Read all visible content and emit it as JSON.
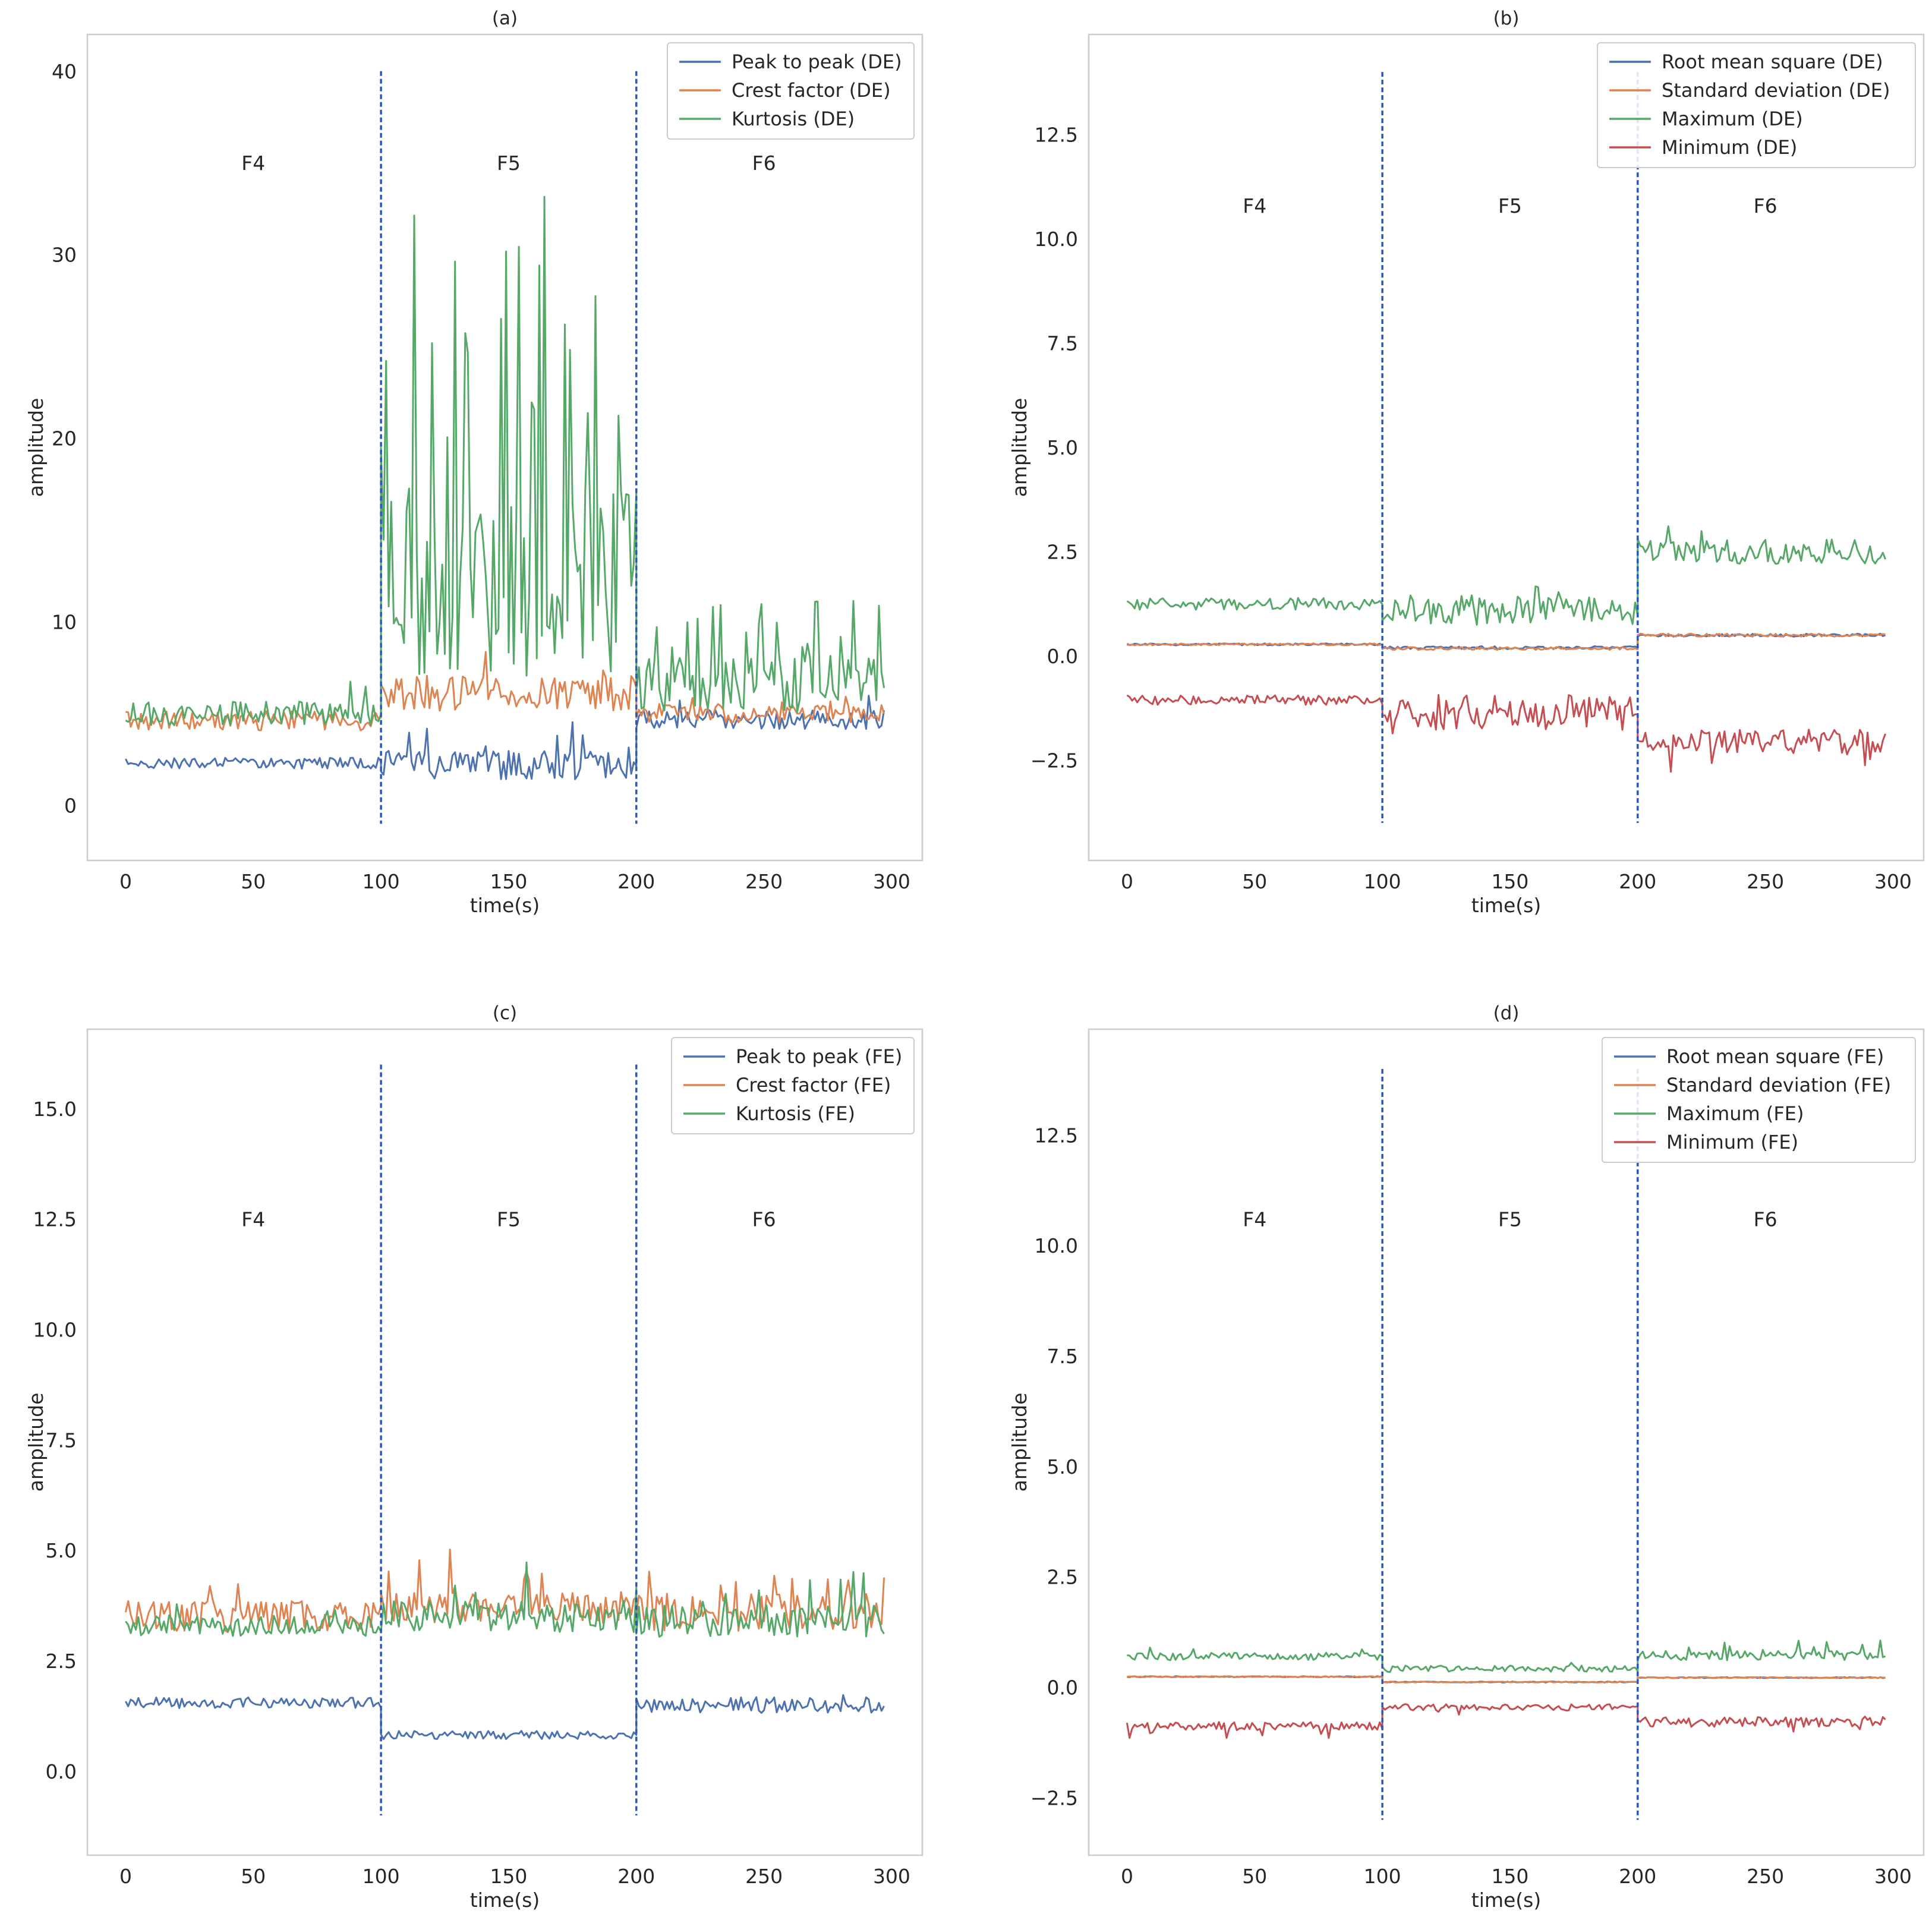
{
  "colors": {
    "blue": "#4c72b0",
    "orange": "#dd8452",
    "green": "#55a868",
    "red": "#c44e52",
    "vline": "#2a58b8",
    "frame": "#cccccc",
    "text": "#262626"
  },
  "chart_data": [
    {
      "type": "line",
      "title": "(a)",
      "xlabel": "time(s)",
      "ylabel": "amplitude",
      "xlim": [
        -15,
        312
      ],
      "ylim": [
        -3,
        42
      ],
      "xticks": [
        0,
        50,
        100,
        150,
        200,
        250,
        300
      ],
      "yticks": [
        0,
        10,
        20,
        30,
        40
      ],
      "ytick_labels": [
        "0",
        "10",
        "20",
        "30",
        "40"
      ],
      "grid": false,
      "legend_position": "upper right",
      "vlines": {
        "x": [
          100,
          200
        ],
        "y_range": [
          -1,
          40
        ],
        "style": "dashed"
      },
      "segment_labels": [
        {
          "text": "F4",
          "x": 50,
          "y": 35
        },
        {
          "text": "F5",
          "x": 150,
          "y": 35
        },
        {
          "text": "F6",
          "x": 250,
          "y": 35
        }
      ],
      "series": [
        {
          "name": "Peak to peak (DE)",
          "color": "blue",
          "segments": [
            {
              "start": 0,
              "end": 100,
              "mean": 2.3,
              "noise": 0.25,
              "spike_prob": 0.0,
              "spike_mag": 0
            },
            {
              "start": 100,
              "end": 200,
              "mean": 2.2,
              "noise": 0.65,
              "spike_prob": 0.1,
              "spike_mag": 1.6
            },
            {
              "start": 200,
              "end": 297,
              "mean": 4.7,
              "noise": 0.45,
              "spike_prob": 0.05,
              "spike_mag": 1.0
            }
          ]
        },
        {
          "name": "Crest factor (DE)",
          "color": "orange",
          "segments": [
            {
              "start": 0,
              "end": 100,
              "mean": 4.6,
              "noise": 0.45,
              "spike_prob": 0.0,
              "spike_mag": 0
            },
            {
              "start": 100,
              "end": 200,
              "mean": 6.1,
              "noise": 0.8,
              "spike_prob": 0.08,
              "spike_mag": 1.8
            },
            {
              "start": 200,
              "end": 297,
              "mean": 5.0,
              "noise": 0.45,
              "spike_prob": 0.04,
              "spike_mag": 0.8
            }
          ]
        },
        {
          "name": "Kurtosis (DE)",
          "color": "green",
          "segments": [
            {
              "start": 0,
              "end": 100,
              "mean": 5.0,
              "noise": 0.55,
              "spike_prob": 0.04,
              "spike_mag": 1.5
            },
            {
              "start": 100,
              "end": 200,
              "mean": 12.0,
              "noise": 4.5,
              "spike_prob": 0.3,
              "spike_mag": 15.0
            },
            {
              "start": 200,
              "end": 297,
              "mean": 6.6,
              "noise": 1.3,
              "spike_prob": 0.15,
              "spike_mag": 3.5
            }
          ]
        }
      ]
    },
    {
      "type": "line",
      "title": "(b)",
      "xlabel": "time(s)",
      "ylabel": "amplitude",
      "xlim": [
        -15,
        312
      ],
      "ylim": [
        -4.9,
        14.9
      ],
      "xticks": [
        0,
        50,
        100,
        150,
        200,
        250,
        300
      ],
      "yticks": [
        -2.5,
        0,
        2.5,
        5,
        7.5,
        10,
        12.5
      ],
      "ytick_labels": [
        "−2.5",
        "0.0",
        "2.5",
        "5.0",
        "7.5",
        "10.0",
        "12.5"
      ],
      "grid": false,
      "legend_position": "upper right",
      "vlines": {
        "x": [
          100,
          200
        ],
        "y_range": [
          -4,
          14
        ],
        "style": "dashed"
      },
      "segment_labels": [
        {
          "text": "F4",
          "x": 50,
          "y": 10.8
        },
        {
          "text": "F5",
          "x": 150,
          "y": 10.8
        },
        {
          "text": "F6",
          "x": 250,
          "y": 10.8
        }
      ],
      "series": [
        {
          "name": "Root mean square (DE)",
          "color": "blue",
          "segments": [
            {
              "start": 0,
              "end": 100,
              "mean": 0.28,
              "noise": 0.02,
              "spike_prob": 0.0,
              "spike_mag": 0
            },
            {
              "start": 100,
              "end": 200,
              "mean": 0.2,
              "noise": 0.03,
              "spike_prob": 0.0,
              "spike_mag": 0
            },
            {
              "start": 200,
              "end": 297,
              "mean": 0.5,
              "noise": 0.03,
              "spike_prob": 0.0,
              "spike_mag": 0
            }
          ]
        },
        {
          "name": "Standard deviation (DE)",
          "color": "orange",
          "segments": [
            {
              "start": 0,
              "end": 100,
              "mean": 0.28,
              "noise": 0.02,
              "spike_prob": 0.0,
              "spike_mag": 0
            },
            {
              "start": 100,
              "end": 200,
              "mean": 0.18,
              "noise": 0.03,
              "spike_prob": 0.0,
              "spike_mag": 0
            },
            {
              "start": 200,
              "end": 297,
              "mean": 0.5,
              "noise": 0.03,
              "spike_prob": 0.0,
              "spike_mag": 0
            }
          ]
        },
        {
          "name": "Maximum (DE)",
          "color": "green",
          "segments": [
            {
              "start": 0,
              "end": 100,
              "mean": 1.25,
              "noise": 0.12,
              "spike_prob": 0.0,
              "spike_mag": 0
            },
            {
              "start": 100,
              "end": 200,
              "mean": 1.1,
              "noise": 0.3,
              "spike_prob": 0.05,
              "spike_mag": 0.4
            },
            {
              "start": 200,
              "end": 297,
              "mean": 2.5,
              "noise": 0.25,
              "spike_prob": 0.06,
              "spike_mag": 0.6
            }
          ]
        },
        {
          "name": "Minimum (DE)",
          "color": "red",
          "segments": [
            {
              "start": 0,
              "end": 100,
              "mean": -1.05,
              "noise": 0.1,
              "spike_prob": 0.0,
              "spike_mag": 0
            },
            {
              "start": 100,
              "end": 200,
              "mean": -1.35,
              "noise": 0.35,
              "spike_prob": 0.05,
              "spike_mag": -0.5
            },
            {
              "start": 200,
              "end": 297,
              "mean": -2.05,
              "noise": 0.25,
              "spike_prob": 0.06,
              "spike_mag": -0.5
            }
          ]
        }
      ]
    },
    {
      "type": "line",
      "title": "(c)",
      "xlabel": "time(s)",
      "ylabel": "amplitude",
      "xlim": [
        -15,
        312
      ],
      "ylim": [
        -1.9,
        16.8
      ],
      "xticks": [
        0,
        50,
        100,
        150,
        200,
        250,
        300
      ],
      "yticks": [
        0,
        2.5,
        5,
        7.5,
        10,
        12.5,
        15
      ],
      "ytick_labels": [
        "0.0",
        "2.5",
        "5.0",
        "7.5",
        "10.0",
        "12.5",
        "15.0"
      ],
      "grid": false,
      "legend_position": "upper right",
      "vlines": {
        "x": [
          100,
          200
        ],
        "y_range": [
          -1,
          16
        ],
        "style": "dashed"
      },
      "segment_labels": [
        {
          "text": "F4",
          "x": 50,
          "y": 12.5
        },
        {
          "text": "F5",
          "x": 150,
          "y": 12.5
        },
        {
          "text": "F6",
          "x": 250,
          "y": 12.5
        }
      ],
      "series": [
        {
          "name": "Peak to peak (FE)",
          "color": "blue",
          "segments": [
            {
              "start": 0,
              "end": 100,
              "mean": 1.55,
              "noise": 0.1,
              "spike_prob": 0.0,
              "spike_mag": 0
            },
            {
              "start": 100,
              "end": 200,
              "mean": 0.82,
              "noise": 0.08,
              "spike_prob": 0.0,
              "spike_mag": 0
            },
            {
              "start": 200,
              "end": 297,
              "mean": 1.5,
              "noise": 0.15,
              "spike_prob": 0.05,
              "spike_mag": 0.3
            }
          ]
        },
        {
          "name": "Crest factor (FE)",
          "color": "orange",
          "segments": [
            {
              "start": 0,
              "end": 100,
              "mean": 3.5,
              "noise": 0.3,
              "spike_prob": 0.05,
              "spike_mag": 0.6
            },
            {
              "start": 100,
              "end": 200,
              "mean": 3.7,
              "noise": 0.3,
              "spike_prob": 0.08,
              "spike_mag": 0.9
            },
            {
              "start": 200,
              "end": 297,
              "mean": 3.6,
              "noise": 0.35,
              "spike_prob": 0.1,
              "spike_mag": 1.0
            }
          ]
        },
        {
          "name": "Kurtosis (FE)",
          "color": "green",
          "segments": [
            {
              "start": 0,
              "end": 100,
              "mean": 3.3,
              "noise": 0.2,
              "spike_prob": 0.03,
              "spike_mag": 0.5
            },
            {
              "start": 100,
              "end": 200,
              "mean": 3.5,
              "noise": 0.3,
              "spike_prob": 0.08,
              "spike_mag": 1.2
            },
            {
              "start": 200,
              "end": 297,
              "mean": 3.4,
              "noise": 0.3,
              "spike_prob": 0.1,
              "spike_mag": 1.0
            }
          ]
        }
      ]
    },
    {
      "type": "line",
      "title": "(d)",
      "xlabel": "time(s)",
      "ylabel": "amplitude",
      "xlim": [
        -15,
        312
      ],
      "ylim": [
        -3.8,
        14.9
      ],
      "xticks": [
        0,
        50,
        100,
        150,
        200,
        250,
        300
      ],
      "yticks": [
        -2.5,
        0,
        2.5,
        5,
        7.5,
        10,
        12.5
      ],
      "ytick_labels": [
        "−2.5",
        "0.0",
        "2.5",
        "5.0",
        "7.5",
        "10.0",
        "12.5"
      ],
      "grid": false,
      "legend_position": "upper right",
      "vlines": {
        "x": [
          100,
          200
        ],
        "y_range": [
          -3,
          14
        ],
        "style": "dashed"
      },
      "segment_labels": [
        {
          "text": "F4",
          "x": 50,
          "y": 10.6
        },
        {
          "text": "F5",
          "x": 150,
          "y": 10.6
        },
        {
          "text": "F6",
          "x": 250,
          "y": 10.6
        }
      ],
      "series": [
        {
          "name": "Root mean square (FE)",
          "color": "blue",
          "segments": [
            {
              "start": 0,
              "end": 100,
              "mean": 0.24,
              "noise": 0.01,
              "spike_prob": 0.0,
              "spike_mag": 0
            },
            {
              "start": 100,
              "end": 200,
              "mean": 0.12,
              "noise": 0.01,
              "spike_prob": 0.0,
              "spike_mag": 0
            },
            {
              "start": 200,
              "end": 297,
              "mean": 0.22,
              "noise": 0.01,
              "spike_prob": 0.0,
              "spike_mag": 0
            }
          ]
        },
        {
          "name": "Standard deviation (FE)",
          "color": "orange",
          "segments": [
            {
              "start": 0,
              "end": 100,
              "mean": 0.24,
              "noise": 0.01,
              "spike_prob": 0.0,
              "spike_mag": 0
            },
            {
              "start": 100,
              "end": 200,
              "mean": 0.12,
              "noise": 0.01,
              "spike_prob": 0.0,
              "spike_mag": 0
            },
            {
              "start": 200,
              "end": 297,
              "mean": 0.22,
              "noise": 0.01,
              "spike_prob": 0.0,
              "spike_mag": 0
            }
          ]
        },
        {
          "name": "Maximum (FE)",
          "color": "green",
          "segments": [
            {
              "start": 0,
              "end": 100,
              "mean": 0.7,
              "noise": 0.07,
              "spike_prob": 0.03,
              "spike_mag": 0.15
            },
            {
              "start": 100,
              "end": 200,
              "mean": 0.42,
              "noise": 0.06,
              "spike_prob": 0.03,
              "spike_mag": 0.12
            },
            {
              "start": 200,
              "end": 297,
              "mean": 0.72,
              "noise": 0.09,
              "spike_prob": 0.05,
              "spike_mag": 0.25
            }
          ]
        },
        {
          "name": "Minimum (FE)",
          "color": "red",
          "segments": [
            {
              "start": 0,
              "end": 100,
              "mean": -0.88,
              "noise": 0.08,
              "spike_prob": 0.03,
              "spike_mag": -0.2
            },
            {
              "start": 100,
              "end": 200,
              "mean": -0.45,
              "noise": 0.06,
              "spike_prob": 0.03,
              "spike_mag": -0.12
            },
            {
              "start": 200,
              "end": 297,
              "mean": -0.78,
              "noise": 0.1,
              "spike_prob": 0.05,
              "spike_mag": -0.25
            }
          ]
        }
      ]
    }
  ]
}
